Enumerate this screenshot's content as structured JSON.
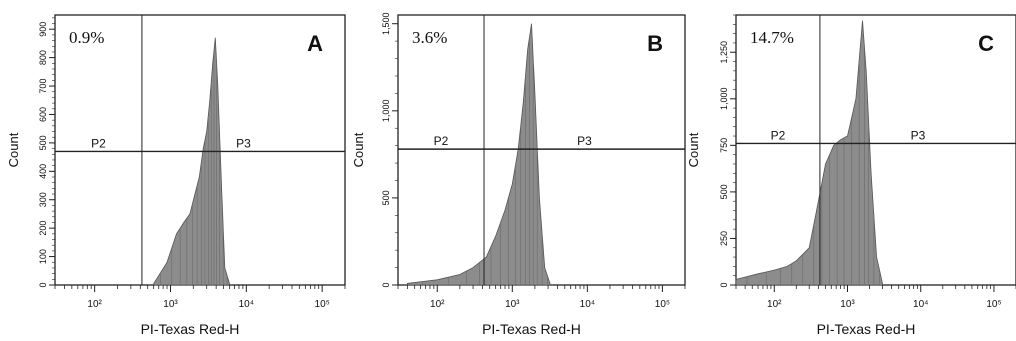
{
  "chart_data": [
    {
      "type": "histogram",
      "panel_label": "A",
      "percentage_label": "0.9%",
      "xlabel": "PI-Texas Red-H",
      "ylabel": "Count",
      "x_scale": "log",
      "xlim": [
        30,
        200000
      ],
      "ylim": [
        0,
        950
      ],
      "x_ticks": [
        100,
        1000,
        10000,
        100000
      ],
      "x_tick_labels": [
        "10²",
        "10³",
        "10⁴",
        "10⁵"
      ],
      "y_ticks": [
        0,
        100,
        200,
        300,
        400,
        500,
        600,
        700,
        800,
        900
      ],
      "y_tick_labels": [
        "0",
        "100",
        "200",
        "300",
        "400",
        "500",
        "600",
        "700",
        "800",
        "900"
      ],
      "gate_x": 420,
      "gate_y": 470,
      "region_labels": [
        "P2",
        "P3"
      ],
      "x": [
        600,
        900,
        1200,
        1500,
        1800,
        2100,
        2400,
        2700,
        3000,
        3300,
        3600,
        3900,
        4200,
        4700,
        5200,
        6000
      ],
      "y": [
        5,
        80,
        180,
        220,
        250,
        320,
        380,
        480,
        540,
        650,
        780,
        870,
        700,
        350,
        60,
        5
      ]
    },
    {
      "type": "histogram",
      "panel_label": "B",
      "percentage_label": "3.6%",
      "xlabel": "PI-Texas Red-H",
      "ylabel": "Count",
      "x_scale": "log",
      "xlim": [
        30,
        200000
      ],
      "ylim": [
        0,
        1550
      ],
      "x_ticks": [
        100,
        1000,
        10000,
        100000
      ],
      "x_tick_labels": [
        "10²",
        "10³",
        "10⁴",
        "10⁵"
      ],
      "y_ticks": [
        0,
        500,
        1000,
        1500
      ],
      "y_tick_labels": [
        "0",
        "500",
        "1,000",
        "1,500"
      ],
      "gate_x": 420,
      "gate_y": 780,
      "region_labels": [
        "P2",
        "P3"
      ],
      "x": [
        40,
        100,
        200,
        300,
        450,
        600,
        800,
        1000,
        1200,
        1400,
        1600,
        1800,
        2000,
        2300,
        2700,
        3200
      ],
      "y": [
        10,
        30,
        60,
        100,
        160,
        280,
        430,
        580,
        780,
        1050,
        1350,
        1500,
        1100,
        500,
        100,
        5
      ]
    },
    {
      "type": "histogram",
      "panel_label": "C",
      "percentage_label": "14.7%",
      "xlabel": "PI-Texas Red-H",
      "ylabel": "Count",
      "x_scale": "log",
      "xlim": [
        30,
        200000
      ],
      "ylim": [
        0,
        1450
      ],
      "x_ticks": [
        100,
        1000,
        10000,
        100000
      ],
      "x_tick_labels": [
        "10²",
        "10³",
        "10⁴",
        "10⁵"
      ],
      "y_ticks": [
        0,
        250,
        500,
        750,
        1000,
        1250
      ],
      "y_tick_labels": [
        "0",
        "250",
        "500",
        "750",
        "1,000",
        "1,250"
      ],
      "gate_x": 420,
      "gate_y": 760,
      "region_labels": [
        "P2",
        "P3"
      ],
      "x": [
        30,
        60,
        100,
        150,
        200,
        300,
        400,
        500,
        650,
        800,
        1000,
        1300,
        1600,
        1800,
        2100,
        2500,
        3000
      ],
      "y": [
        30,
        60,
        80,
        100,
        130,
        200,
        450,
        650,
        750,
        780,
        800,
        1000,
        1420,
        1150,
        600,
        150,
        10
      ]
    }
  ]
}
